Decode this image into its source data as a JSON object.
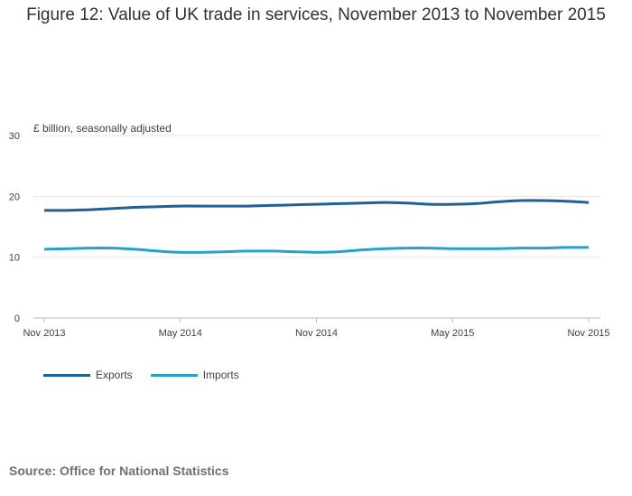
{
  "title": "Figure 12: Value of UK trade in services, November 2013 to November 2015",
  "unit_label": "£ billion, seasonally adjusted",
  "source": "Source: Office for National Statistics",
  "colors": {
    "exports": "#206095",
    "imports": "#27a0cc",
    "grid": "#e6e6e6",
    "axis": "#bbbbbb"
  },
  "chart_data": {
    "type": "line",
    "title": "Figure 12: Value of UK trade in services, November 2013 to November 2015",
    "ylabel": "£ billion, seasonally adjusted",
    "xlabel": "",
    "ylim": [
      0,
      30
    ],
    "yticks": [
      0,
      10,
      20,
      30
    ],
    "grid": true,
    "legend_position": "bottom-left",
    "x": [
      "Nov 2013",
      "Dec 2013",
      "Jan 2014",
      "Feb 2014",
      "Mar 2014",
      "Apr 2014",
      "May 2014",
      "Jun 2014",
      "Jul 2014",
      "Aug 2014",
      "Sep 2014",
      "Oct 2014",
      "Nov 2014",
      "Dec 2014",
      "Jan 2015",
      "Feb 2015",
      "Mar 2015",
      "Apr 2015",
      "May 2015",
      "Jun 2015",
      "Jul 2015",
      "Aug 2015",
      "Sep 2015",
      "Oct 2015",
      "Nov 2015"
    ],
    "xticks": [
      "Nov 2013",
      "May 2014",
      "Nov 2014",
      "May 2015",
      "Nov 2015"
    ],
    "series": [
      {
        "name": "Exports",
        "values": [
          17.7,
          17.7,
          17.8,
          18.0,
          18.2,
          18.3,
          18.4,
          18.4,
          18.4,
          18.4,
          18.5,
          18.6,
          18.7,
          18.8,
          18.9,
          19.0,
          18.9,
          18.7,
          18.7,
          18.8,
          19.1,
          19.3,
          19.3,
          19.2,
          19.0
        ]
      },
      {
        "name": "Imports",
        "values": [
          11.3,
          11.4,
          11.5,
          11.5,
          11.3,
          11.0,
          10.8,
          10.8,
          10.9,
          11.0,
          11.0,
          10.9,
          10.8,
          10.9,
          11.2,
          11.4,
          11.5,
          11.5,
          11.4,
          11.4,
          11.4,
          11.5,
          11.5,
          11.6,
          11.6
        ]
      }
    ]
  }
}
